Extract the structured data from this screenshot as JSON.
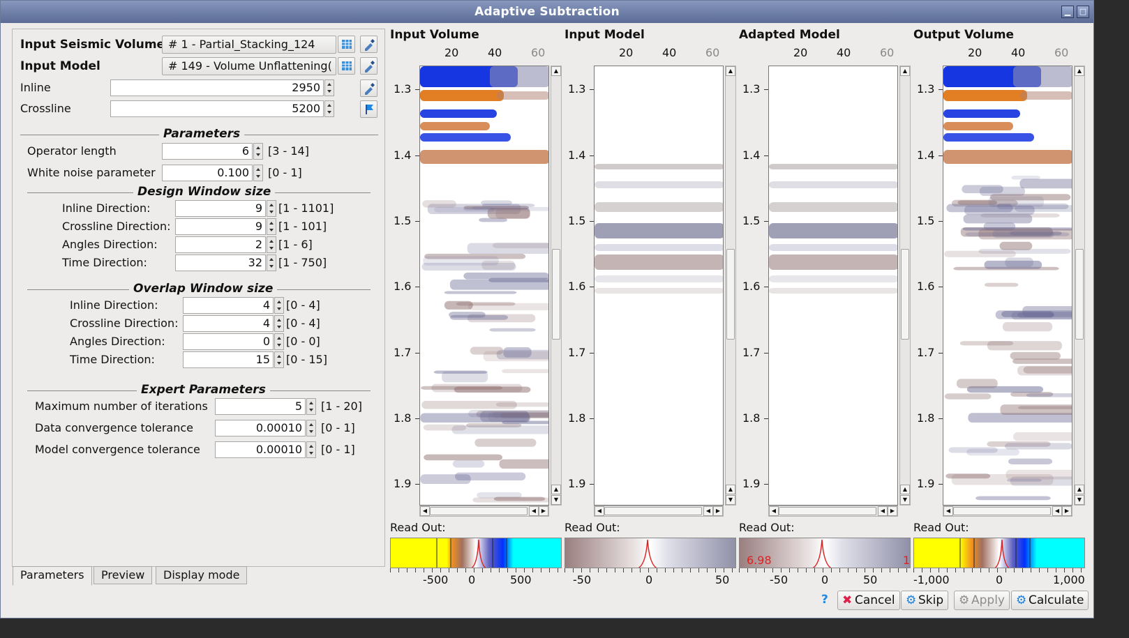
{
  "window": {
    "title": "Adaptive Subtraction"
  },
  "inputs": {
    "seismic_label": "Input Seismic Volume",
    "seismic_value": "# 1 - Partial_Stacking_124",
    "model_label": "Input Model",
    "model_value": "# 149 - Volume Unflattening(",
    "inline_label": "Inline",
    "inline_value": "2950",
    "crossline_label": "Crossline",
    "crossline_value": "5200"
  },
  "parameters": {
    "title": "Parameters",
    "operator_length": {
      "label": "Operator length",
      "value": "6",
      "range": "[3 - 14]"
    },
    "white_noise": {
      "label": "White noise parameter",
      "value": "0.100",
      "range": "[0 - 1]"
    }
  },
  "design_window": {
    "title": "Design Window size",
    "rows": [
      {
        "label": "Inline Direction:",
        "value": "9",
        "range": "[1 - 1101]"
      },
      {
        "label": "Crossline Direction:",
        "value": "9",
        "range": "[1 - 101]"
      },
      {
        "label": "Angles Direction:",
        "value": "2",
        "range": "[1 - 6]"
      },
      {
        "label": "Time Direction:",
        "value": "32",
        "range": "[1 - 750]"
      }
    ]
  },
  "overlap_window": {
    "title": "Overlap Window size",
    "rows": [
      {
        "label": "Inline Direction:",
        "value": "4",
        "range": "[0 - 4]"
      },
      {
        "label": "Crossline Direction:",
        "value": "4",
        "range": "[0 - 4]"
      },
      {
        "label": "Angles Direction:",
        "value": "0",
        "range": "[0 - 0]"
      },
      {
        "label": "Time Direction:",
        "value": "15",
        "range": "[0 - 15]"
      }
    ]
  },
  "expert": {
    "title": "Expert Parameters",
    "rows": [
      {
        "label": "Maximum number of iterations",
        "value": "5",
        "range": "[1 - 20]"
      },
      {
        "label": "Data convergence tolerance",
        "value": "0.00010",
        "range": "[0 - 1]"
      },
      {
        "label": "Model convergence tolerance",
        "value": "0.00010",
        "range": "[0 - 1]"
      }
    ]
  },
  "tabs": [
    "Parameters",
    "Preview",
    "Display mode"
  ],
  "viewers": [
    {
      "title": "Input Volume",
      "readout": "Read Out:",
      "cb_ticks": [
        "-500",
        "0",
        "500"
      ],
      "cb_label": ""
    },
    {
      "title": "Input Model",
      "readout": "Read Out:",
      "cb_ticks": [
        "-50",
        "0",
        "50"
      ],
      "cb_label": ""
    },
    {
      "title": "Adapted Model",
      "readout": "Read Out:",
      "cb_ticks": [
        "-50",
        "0",
        "50"
      ],
      "cb_label": "6.98",
      "cb_label_right": "1"
    },
    {
      "title": "Output Volume",
      "readout": "Read Out:",
      "cb_ticks": [
        "-1,000",
        "0",
        "1,000"
      ],
      "cb_label": ""
    }
  ],
  "x_ticks": [
    "20",
    "40",
    "60"
  ],
  "y_ticks": [
    "1.3",
    "1.4",
    "1.5",
    "1.6",
    "1.7",
    "1.8",
    "1.9"
  ],
  "buttons": {
    "help": "?",
    "cancel": "Cancel",
    "skip": "Skip",
    "apply": "Apply",
    "calculate": "Calculate"
  },
  "colors": {
    "title_bar": "#6a7ba4",
    "seismic_neg": "#1530e0",
    "seismic_pos": "#e07818",
    "highlight_cyan": "#00ffff",
    "highlight_yellow": "#ffff00"
  }
}
